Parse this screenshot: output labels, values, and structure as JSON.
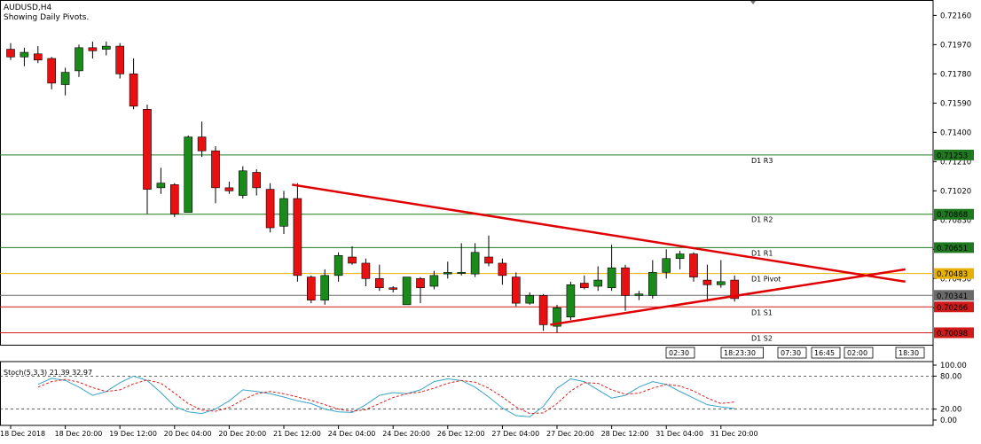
{
  "header": {
    "symbol": "AUDUSD,H4",
    "subtitle": "Showing Daily Pivots."
  },
  "colors": {
    "bull": "#1a8a1a",
    "bear": "#e81010",
    "wick": "#000000",
    "resistance": "#1f7a1f",
    "support": "#d11a1a",
    "pivot": "#e8b000",
    "current": "#6a6a6a",
    "trendline": "#e00000",
    "stoch_main": "#3aa3c8",
    "stoch_signal": "#e02020"
  },
  "chart_data": [
    {
      "type": "candlestick",
      "title": "AUDUSD,H4",
      "ylim": [
        0.7002,
        0.7226
      ],
      "y_ticks": [
        "0.72160",
        "0.71970",
        "0.71780",
        "0.71590",
        "0.71400",
        "0.71210",
        "0.71020",
        "0.70830",
        "0.70640",
        "0.70450",
        "0.70260"
      ],
      "x_ticks": [
        {
          "i": 0,
          "label": "18 Dec 2018"
        },
        {
          "i": 4,
          "label": "18 Dec 20:00"
        },
        {
          "i": 8,
          "label": "19 Dec 12:00"
        },
        {
          "i": 12,
          "label": "20 Dec 04:00"
        },
        {
          "i": 16,
          "label": "20 Dec 20:00"
        },
        {
          "i": 20,
          "label": "21 Dec 12:00"
        },
        {
          "i": 24,
          "label": "24 Dec 04:00"
        },
        {
          "i": 28,
          "label": "24 Dec 20:00"
        },
        {
          "i": 32,
          "label": "26 Dec 12:00"
        },
        {
          "i": 36,
          "label": "27 Dec 04:00"
        },
        {
          "i": 40,
          "label": "27 Dec 20:00"
        },
        {
          "i": 44,
          "label": "28 Dec 12:00"
        },
        {
          "i": 48,
          "label": "31 Dec 04:00"
        },
        {
          "i": 52,
          "label": "31 Dec 20:00"
        }
      ],
      "candles": [
        [
          0.7194,
          0.7198,
          0.7187,
          0.7189
        ],
        [
          0.7189,
          0.7195,
          0.7183,
          0.7192
        ],
        [
          0.7191,
          0.7196,
          0.7185,
          0.7187
        ],
        [
          0.7188,
          0.7189,
          0.7168,
          0.7172
        ],
        [
          0.7171,
          0.7182,
          0.7164,
          0.7179
        ],
        [
          0.718,
          0.7197,
          0.7176,
          0.7195
        ],
        [
          0.7195,
          0.7199,
          0.7188,
          0.7193
        ],
        [
          0.7194,
          0.7199,
          0.719,
          0.7196
        ],
        [
          0.7196,
          0.7198,
          0.7175,
          0.7178
        ],
        [
          0.7178,
          0.7188,
          0.7155,
          0.7157
        ],
        [
          0.7155,
          0.7158,
          0.7087,
          0.7103
        ],
        [
          0.7104,
          0.7117,
          0.71,
          0.7107
        ],
        [
          0.7106,
          0.7107,
          0.7085,
          0.7087
        ],
        [
          0.7088,
          0.7138,
          0.7088,
          0.7137
        ],
        [
          0.7137,
          0.7147,
          0.7124,
          0.7128
        ],
        [
          0.7128,
          0.7131,
          0.7094,
          0.7104
        ],
        [
          0.7104,
          0.7108,
          0.71,
          0.7102
        ],
        [
          0.7099,
          0.7118,
          0.7097,
          0.7115
        ],
        [
          0.7114,
          0.7116,
          0.7099,
          0.7104
        ],
        [
          0.7103,
          0.7107,
          0.7075,
          0.7078
        ],
        [
          0.7079,
          0.7102,
          0.7074,
          0.7097
        ],
        [
          0.7097,
          0.7107,
          0.7043,
          0.7047
        ],
        [
          0.7046,
          0.7047,
          0.7029,
          0.7031
        ],
        [
          0.7031,
          0.7051,
          0.7028,
          0.7047
        ],
        [
          0.7047,
          0.7062,
          0.7043,
          0.706
        ],
        [
          0.7059,
          0.7066,
          0.7054,
          0.7055
        ],
        [
          0.7055,
          0.7058,
          0.704,
          0.7045
        ],
        [
          0.7045,
          0.7054,
          0.7037,
          0.7039
        ],
        [
          0.7039,
          0.704,
          0.7036,
          0.7038
        ],
        [
          0.7028,
          0.7046,
          0.7028,
          0.7046
        ],
        [
          0.7045,
          0.7046,
          0.7029,
          0.7039
        ],
        [
          0.704,
          0.705,
          0.7038,
          0.7047
        ],
        [
          0.7048,
          0.7056,
          0.7045,
          0.7049
        ],
        [
          0.7049,
          0.7068,
          0.7047,
          0.7049
        ],
        [
          0.7048,
          0.7068,
          0.7046,
          0.7062
        ],
        [
          0.7059,
          0.7073,
          0.7053,
          0.7055
        ],
        [
          0.7055,
          0.7058,
          0.7041,
          0.7047
        ],
        [
          0.7046,
          0.7049,
          0.7027,
          0.7029
        ],
        [
          0.7029,
          0.7036,
          0.7028,
          0.7034
        ],
        [
          0.7034,
          0.7035,
          0.7011,
          0.7015
        ],
        [
          0.7014,
          0.7028,
          0.701,
          0.7026
        ],
        [
          0.702,
          0.7043,
          0.7018,
          0.7041
        ],
        [
          0.7042,
          0.7047,
          0.7038,
          0.7039
        ],
        [
          0.704,
          0.7053,
          0.7037,
          0.7044
        ],
        [
          0.7039,
          0.7067,
          0.7037,
          0.7052
        ],
        [
          0.7052,
          0.7054,
          0.7024,
          0.7034
        ],
        [
          0.7034,
          0.7037,
          0.7031,
          0.7035
        ],
        [
          0.7034,
          0.7057,
          0.7032,
          0.7049
        ],
        [
          0.7049,
          0.7064,
          0.7045,
          0.7058
        ],
        [
          0.7058,
          0.7063,
          0.7051,
          0.7061
        ],
        [
          0.7061,
          0.7062,
          0.7043,
          0.7046
        ],
        [
          0.7044,
          0.7054,
          0.703,
          0.7041
        ],
        [
          0.7041,
          0.7057,
          0.7039,
          0.7043
        ],
        [
          0.7044,
          0.7047,
          0.703,
          0.7032
        ]
      ],
      "pivot_levels": [
        {
          "label": "D1 R3",
          "value": 0.71253,
          "tag": "0.71253",
          "color": "#1f7a1f"
        },
        {
          "label": "D1 R2",
          "value": 0.70868,
          "tag": "0.70868",
          "color": "#1f7a1f"
        },
        {
          "label": "D1 R1",
          "value": 0.70651,
          "tag": "0.70651",
          "color": "#1f7a1f"
        },
        {
          "label": "D1 Pivot",
          "value": 0.70483,
          "tag": "0.70483",
          "color": "#e8b000"
        },
        {
          "label": "D1 S1",
          "value": 0.70266,
          "tag": "0.70266",
          "color": "#d11a1a"
        },
        {
          "label": "D1 S2",
          "value": 0.70098,
          "tag": "0.70098",
          "color": "#d11a1a"
        }
      ],
      "current_price": {
        "value": 0.70341,
        "tag": "0.70341"
      },
      "trendlines": [
        {
          "name": "upper",
          "from": [
            20.6,
            0.7106
          ],
          "to": [
            65.5,
            0.7043
          ]
        },
        {
          "name": "lower",
          "from": [
            39.5,
            0.7015
          ],
          "to": [
            65.5,
            0.7051
          ]
        }
      ],
      "time_markers": [
        "02:30",
        "18:23:30",
        "07:30",
        "16:45",
        "02:00",
        "18:30"
      ]
    },
    {
      "type": "line",
      "title": "Stoch(5,3,3) 21.39 32.97",
      "ylim": [
        0,
        100
      ],
      "y_ticks": [
        "100.00",
        "80.00",
        "20.00",
        "0.00"
      ],
      "levels": [
        80,
        20
      ],
      "series": [
        {
          "name": "main",
          "values": [
            65,
            76,
            72,
            60,
            45,
            52,
            68,
            80,
            72,
            50,
            25,
            15,
            12,
            20,
            35,
            55,
            52,
            48,
            42,
            35,
            30,
            20,
            15,
            14,
            28,
            45,
            50,
            48,
            55,
            70,
            75,
            72,
            60,
            42,
            22,
            8,
            6,
            25,
            58,
            75,
            70,
            55,
            40,
            45,
            60,
            70,
            65,
            52,
            40,
            28,
            24,
            21
          ]
        },
        {
          "name": "signal",
          "values": [
            60,
            70,
            74,
            69,
            59,
            52,
            55,
            66,
            73,
            67,
            49,
            30,
            18,
            16,
            23,
            37,
            48,
            52,
            48,
            42,
            36,
            28,
            20,
            16,
            19,
            30,
            41,
            48,
            51,
            58,
            67,
            72,
            69,
            58,
            42,
            24,
            12,
            13,
            30,
            53,
            68,
            67,
            55,
            47,
            49,
            58,
            65,
            62,
            53,
            40,
            30,
            33
          ]
        }
      ]
    }
  ]
}
